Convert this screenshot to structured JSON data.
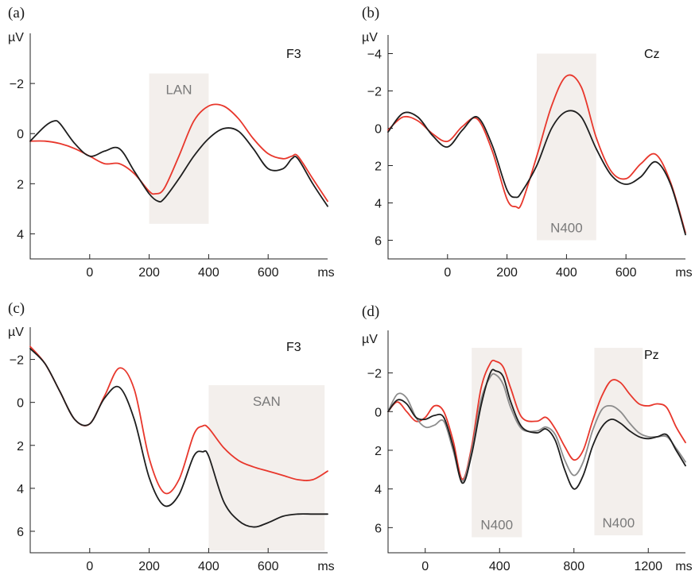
{
  "colors": {
    "red": "#e8372c",
    "black": "#1e1e1e",
    "gray": "#8c8c8c",
    "window": "#f3efec"
  },
  "chart_data": [
    {
      "type": "line",
      "panel_label": "(a)",
      "unit_label": "µV",
      "x_unit_label": "ms",
      "electrode": "F3",
      "y_inverted": true,
      "xlim": [
        -200,
        800
      ],
      "ylim": [
        -4,
        5
      ],
      "x_ticks": [
        0,
        200,
        400,
        600
      ],
      "x_tick_labels": [
        "0",
        "200",
        "400",
        "600"
      ],
      "y_ticks": [
        -2,
        0,
        2,
        4
      ],
      "y_tick_labels": [
        "−2",
        "0",
        "2",
        "4"
      ],
      "windows": [
        {
          "label": "LAN",
          "x": [
            200,
            400
          ],
          "y": [
            -2.4,
            3.6
          ],
          "label_pos": "top"
        }
      ],
      "series": [
        {
          "color": "red",
          "x": [
            -200,
            -150,
            -100,
            -50,
            0,
            50,
            100,
            150,
            200,
            220,
            250,
            300,
            350,
            400,
            450,
            500,
            550,
            600,
            650,
            680,
            700,
            750,
            800
          ],
          "y": [
            0.3,
            0.3,
            0.4,
            0.6,
            0.9,
            1.2,
            1.2,
            1.6,
            2.3,
            2.4,
            2.2,
            0.9,
            -0.5,
            -1.1,
            -1.1,
            -0.6,
            0.2,
            0.8,
            1.0,
            0.9,
            0.9,
            1.8,
            2.7
          ]
        },
        {
          "color": "black",
          "x": [
            -200,
            -150,
            -120,
            -100,
            -50,
            0,
            50,
            100,
            150,
            200,
            230,
            250,
            300,
            350,
            400,
            450,
            500,
            550,
            600,
            650,
            680,
            700,
            750,
            800
          ],
          "y": [
            0.3,
            -0.3,
            -0.5,
            -0.4,
            0.4,
            0.9,
            0.7,
            0.6,
            1.5,
            2.4,
            2.7,
            2.6,
            1.8,
            0.9,
            0.2,
            -0.2,
            -0.1,
            0.6,
            1.4,
            1.4,
            1.0,
            1.0,
            2.0,
            2.9
          ]
        }
      ]
    },
    {
      "type": "line",
      "panel_label": "(b)",
      "unit_label": "µV",
      "x_unit_label": "ms",
      "electrode": "Cz",
      "y_inverted": true,
      "xlim": [
        -200,
        800
      ],
      "ylim": [
        -5,
        7
      ],
      "x_ticks": [
        0,
        200,
        400,
        600
      ],
      "x_tick_labels": [
        "0",
        "200",
        "400",
        "600"
      ],
      "y_ticks": [
        -4,
        -2,
        0,
        2,
        4,
        6
      ],
      "y_tick_labels": [
        "−4",
        "−2",
        "0",
        "2",
        "4",
        "6"
      ],
      "windows": [
        {
          "label": "N400",
          "x": [
            300,
            500
          ],
          "y": [
            -4,
            6
          ],
          "label_pos": "bottom"
        }
      ],
      "series": [
        {
          "color": "red",
          "x": [
            -200,
            -150,
            -100,
            -50,
            0,
            50,
            100,
            150,
            200,
            230,
            250,
            300,
            350,
            400,
            450,
            500,
            550,
            600,
            650,
            700,
            750,
            800
          ],
          "y": [
            0.1,
            -0.6,
            -0.4,
            0.3,
            0.7,
            -0.1,
            -0.5,
            1.2,
            3.8,
            4.2,
            4.0,
            1.5,
            -1.2,
            -2.8,
            -2.2,
            0.5,
            2.3,
            2.7,
            1.9,
            1.4,
            2.9,
            5.6
          ]
        },
        {
          "color": "black",
          "x": [
            -200,
            -150,
            -100,
            -50,
            0,
            50,
            100,
            150,
            200,
            230,
            250,
            300,
            350,
            400,
            450,
            500,
            550,
            600,
            650,
            700,
            750,
            800
          ],
          "y": [
            0.2,
            -0.8,
            -0.6,
            0.4,
            1.0,
            0.1,
            -0.6,
            0.9,
            3.3,
            3.7,
            3.4,
            2.0,
            0.0,
            -0.9,
            -0.6,
            1.1,
            2.5,
            3.0,
            2.6,
            1.8,
            3.0,
            5.7
          ]
        }
      ]
    },
    {
      "type": "line",
      "panel_label": "(c)",
      "unit_label": "µV",
      "x_unit_label": "ms",
      "electrode": "F3",
      "y_inverted": true,
      "xlim": [
        -200,
        800
      ],
      "ylim": [
        -3.5,
        7
      ],
      "x_ticks": [
        0,
        200,
        400,
        600
      ],
      "x_tick_labels": [
        "0",
        "200",
        "400",
        "600"
      ],
      "y_ticks": [
        -2,
        0,
        2,
        4,
        6
      ],
      "y_tick_labels": [
        "−2",
        "0",
        "2",
        "4",
        "6"
      ],
      "windows": [
        {
          "label": "SAN",
          "x": [
            400,
            790
          ],
          "y": [
            -0.8,
            6.9
          ],
          "label_pos": "top"
        }
      ],
      "series": [
        {
          "color": "red",
          "x": [
            -200,
            -150,
            -100,
            -50,
            0,
            50,
            100,
            150,
            200,
            250,
            300,
            350,
            380,
            400,
            450,
            500,
            550,
            600,
            650,
            700,
            750,
            800
          ],
          "y": [
            -2.6,
            -1.8,
            -0.5,
            0.8,
            1.0,
            -0.3,
            -1.6,
            -0.6,
            2.6,
            4.2,
            3.6,
            1.5,
            1.1,
            1.2,
            2.1,
            2.7,
            3.0,
            3.2,
            3.4,
            3.6,
            3.6,
            3.2
          ]
        },
        {
          "color": "black",
          "x": [
            -200,
            -150,
            -100,
            -50,
            0,
            50,
            100,
            150,
            200,
            250,
            300,
            350,
            380,
            400,
            450,
            500,
            550,
            600,
            650,
            700,
            750,
            800
          ],
          "y": [
            -2.5,
            -1.8,
            -0.5,
            0.8,
            1.0,
            -0.2,
            -0.7,
            0.8,
            3.5,
            4.8,
            4.3,
            2.5,
            2.3,
            2.5,
            4.6,
            5.5,
            5.8,
            5.6,
            5.3,
            5.2,
            5.2,
            5.2
          ]
        }
      ]
    },
    {
      "type": "line",
      "panel_label": "(d)",
      "unit_label": "µV",
      "x_unit_label": "ms",
      "electrode": "Pz",
      "y_inverted": true,
      "xlim": [
        -200,
        1400
      ],
      "ylim": [
        -4.2,
        7.3
      ],
      "x_ticks": [
        0,
        400,
        800,
        1200
      ],
      "x_tick_labels": [
        "0",
        "400",
        "800",
        "1200"
      ],
      "y_ticks": [
        -2,
        0,
        2,
        4,
        6
      ],
      "y_tick_labels": [
        "−2",
        "0",
        "2",
        "4",
        "6"
      ],
      "windows": [
        {
          "label": "N400",
          "x": [
            250,
            520
          ],
          "y": [
            -3.3,
            6.5
          ],
          "label_pos": "bottom"
        },
        {
          "label": "N400",
          "x": [
            910,
            1170
          ],
          "y": [
            -3.3,
            6.4
          ],
          "label_pos": "bottom"
        }
      ],
      "series": [
        {
          "color": "red",
          "x": [
            -200,
            -150,
            -100,
            -50,
            0,
            50,
            100,
            150,
            200,
            250,
            300,
            350,
            380,
            420,
            460,
            520,
            600,
            650,
            700,
            750,
            800,
            850,
            900,
            950,
            1000,
            1050,
            1100,
            1150,
            1200,
            1250,
            1300,
            1350,
            1400
          ],
          "y": [
            0.0,
            -0.5,
            0.0,
            0.5,
            0.3,
            -0.3,
            0.0,
            1.5,
            3.5,
            1.8,
            -1.2,
            -2.5,
            -2.6,
            -2.3,
            -1.2,
            0.3,
            0.5,
            0.3,
            0.9,
            1.8,
            2.5,
            2.0,
            0.5,
            -0.8,
            -1.6,
            -1.5,
            -0.9,
            -0.4,
            -0.3,
            -0.4,
            -0.2,
            0.8,
            1.6
          ]
        },
        {
          "color": "gray",
          "x": [
            -200,
            -150,
            -100,
            -50,
            0,
            50,
            100,
            150,
            200,
            250,
            300,
            350,
            380,
            420,
            460,
            520,
            600,
            650,
            700,
            750,
            800,
            850,
            900,
            950,
            1000,
            1050,
            1100,
            1150,
            1200,
            1250,
            1300,
            1350,
            1400
          ],
          "y": [
            0.0,
            -0.9,
            -0.7,
            0.3,
            0.8,
            0.7,
            0.5,
            2.0,
            3.6,
            2.0,
            -0.6,
            -1.8,
            -1.9,
            -1.4,
            -0.2,
            0.9,
            1.0,
            0.8,
            1.2,
            2.5,
            3.3,
            2.6,
            1.0,
            -0.1,
            -0.3,
            0.0,
            0.6,
            1.1,
            1.3,
            1.3,
            1.3,
            1.9,
            2.6
          ]
        },
        {
          "color": "black",
          "x": [
            -200,
            -150,
            -100,
            -50,
            0,
            50,
            100,
            150,
            200,
            250,
            300,
            350,
            380,
            420,
            460,
            520,
            600,
            650,
            700,
            750,
            800,
            850,
            900,
            950,
            1000,
            1050,
            1100,
            1150,
            1200,
            1250,
            1300,
            1350,
            1400
          ],
          "y": [
            0.0,
            -0.6,
            -0.4,
            0.3,
            0.4,
            0.2,
            0.3,
            1.8,
            3.7,
            2.2,
            -0.3,
            -2.0,
            -2.1,
            -1.8,
            -0.5,
            0.8,
            1.1,
            0.9,
            1.5,
            3.0,
            4.0,
            3.3,
            1.8,
            0.8,
            0.4,
            0.6,
            1.0,
            1.3,
            1.4,
            1.3,
            1.2,
            2.0,
            2.8
          ]
        }
      ]
    }
  ]
}
